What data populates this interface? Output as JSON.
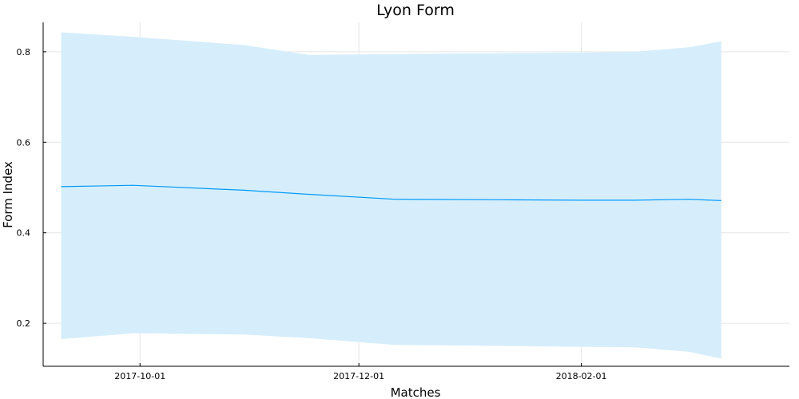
{
  "chart_data": {
    "type": "area",
    "title": "Lyon Form",
    "xlabel": "Matches",
    "ylabel": "Form Index",
    "xlim": [
      "2017-09-04",
      "2018-03-31"
    ],
    "ylim": [
      0.105,
      0.865
    ],
    "x_ticks": [
      "2017-10-01",
      "2017-12-01",
      "2018-02-01"
    ],
    "y_ticks": [
      0.2,
      0.4,
      0.6,
      0.8
    ],
    "y_tick_labels": [
      "0.2",
      "0.4",
      "0.6",
      "0.8"
    ],
    "grid": true,
    "legend": "none",
    "colors": {
      "line": "#009AF9",
      "band": "#D6EEFB"
    },
    "series": [
      {
        "x": [
          "2017-09-09",
          "2017-09-29",
          "2017-10-30",
          "2017-11-17",
          "2017-12-11",
          "2018-01-10",
          "2018-02-01",
          "2018-02-16",
          "2018-03-03",
          "2018-03-12"
        ],
        "values": [
          0.502,
          0.505,
          0.494,
          0.485,
          0.474,
          0.473,
          0.472,
          0.472,
          0.474,
          0.471
        ],
        "lower": [
          0.165,
          0.178,
          0.175,
          0.167,
          0.152,
          0.15,
          0.148,
          0.147,
          0.137,
          0.122
        ],
        "upper": [
          0.843,
          0.833,
          0.815,
          0.793,
          0.795,
          0.797,
          0.798,
          0.8,
          0.81,
          0.823
        ]
      }
    ]
  }
}
